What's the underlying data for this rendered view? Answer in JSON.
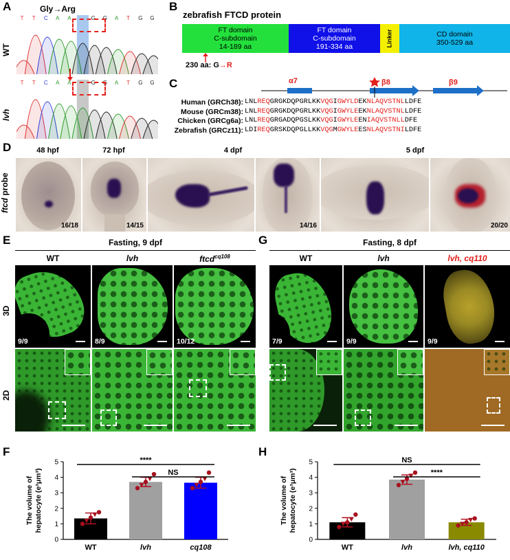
{
  "panels": {
    "A": "A",
    "B": "B",
    "C": "C",
    "D": "D",
    "E": "E",
    "F": "F",
    "G": "G",
    "H": "H"
  },
  "panelA": {
    "mutation_label": "Gly→Arg",
    "wt_label": "WT",
    "lvh_label": "lvh",
    "wt_bases": [
      "T",
      "T",
      "C",
      "A",
      "A",
      "G",
      "G",
      "G",
      "A",
      "T",
      "G",
      "G"
    ],
    "lvh_bases": [
      "T",
      "T",
      "C",
      "A",
      "A",
      "A",
      "G",
      "G",
      "A",
      "T",
      "G",
      "G"
    ]
  },
  "panelB": {
    "title": "zebrafish FTCD protein",
    "domains": [
      {
        "label": "FT domain\nC-subdomain\n14-189 aa",
        "color": "#23e03c"
      },
      {
        "label": "FT domain\nC-subdomain\n191-334 aa",
        "color": "#1010e8"
      },
      {
        "label": "Linker",
        "color": "#f5f000"
      },
      {
        "label": "CD domain\n350-529 aa",
        "color": "#10b4e8"
      }
    ],
    "mutation_note_prefix": "230 aa: G",
    "mutation_note_suffix": "R"
  },
  "panelC": {
    "helix_label": "α7",
    "beta8_label": "β8",
    "beta9_label": "β9",
    "rows": [
      {
        "name": "Human (GRCh38):",
        "seq": "LNLREQGRGKDQPGRLKKVQGIGWYLDEKNLAQVSTNLLDFE"
      },
      {
        "name": "Mouse (GRCm38):",
        "seq": "LNLREQGRGKDQPGRLKKVQGIGWYLEEKNLAQVSTNLLDFE"
      },
      {
        "name": "Chicken (GRCg6a):",
        "seq": "LNLREQGRGADQPGSLKKVQGIGWYLEENIAQVSTNLLDFE"
      },
      {
        "name": "Zebrafish (GRCz11):",
        "seq": "LDIREQGRSKDQPGLLKKVQGMGWYLEESNLAQVSTNILDFE"
      }
    ]
  },
  "panelD": {
    "probe_label_italic": "ftcd",
    "probe_label_rest": " probe",
    "stages": [
      "48 hpf",
      "72 hpf",
      "4 dpf",
      "5 dpf"
    ],
    "counts": [
      "16/18",
      "14/15",
      "14/16",
      "20/20"
    ]
  },
  "panelE": {
    "header": "Fasting, 9 dpf",
    "columns": [
      "WT",
      "lvh",
      "ftcd"
    ],
    "ftcd_superscript": "cq108",
    "row_labels": [
      "3D",
      "2D"
    ],
    "counts": [
      "9/9",
      "8/9",
      "10/12"
    ]
  },
  "panelG": {
    "header": "Fasting, 8 dpf",
    "columns": [
      "WT",
      "lvh",
      "lvh, cq110"
    ],
    "counts": [
      "7/9",
      "9/9",
      "9/9"
    ]
  },
  "chart_data": [
    {
      "type": "bar",
      "panel": "F",
      "categories": [
        "WT",
        "lvh",
        "cq108"
      ],
      "values": [
        1.35,
        3.7,
        3.65
      ],
      "errors": [
        0.35,
        0.3,
        0.35
      ],
      "points": [
        [
          1.0,
          1.2,
          1.4,
          1.6,
          1.75
        ],
        [
          3.3,
          3.5,
          3.7,
          3.9,
          4.2
        ],
        [
          3.3,
          3.5,
          3.7,
          3.9,
          4.3
        ]
      ],
      "colors": [
        "#000000",
        "#a0a0a0",
        "#0000ff"
      ],
      "ylabel": "The volume of hepatocyte (e³μm³)",
      "ylim": [
        0,
        5
      ],
      "yticks": [
        0,
        1,
        2,
        3,
        4,
        5
      ],
      "sig": [
        "****",
        "NS"
      ]
    },
    {
      "type": "bar",
      "panel": "H",
      "categories": [
        "WT",
        "lvh",
        "lvh, cq110"
      ],
      "values": [
        1.1,
        3.85,
        1.1
      ],
      "errors": [
        0.3,
        0.3,
        0.2
      ],
      "points": [
        [
          0.8,
          1.0,
          1.1,
          1.3,
          1.6
        ],
        [
          3.5,
          3.7,
          3.9,
          4.1,
          4.3
        ],
        [
          0.9,
          1.0,
          1.1,
          1.25,
          1.35
        ]
      ],
      "colors": [
        "#000000",
        "#a0a0a0",
        "#8a8a00"
      ],
      "ylabel": "The volume of hepatocyte (e³μm³)",
      "ylim": [
        0,
        5
      ],
      "yticks": [
        0,
        1,
        2,
        3,
        4,
        5
      ],
      "sig": [
        "NS",
        "****"
      ]
    }
  ]
}
